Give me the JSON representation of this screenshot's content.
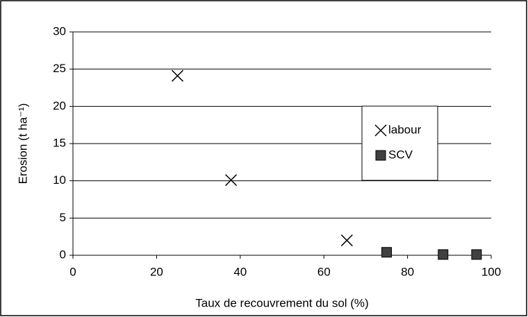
{
  "chart_data": {
    "type": "scatter",
    "x_label": "Taux de recouvrement du sol (%)",
    "y_label": "Erosion (t ha⁻¹)",
    "xlim": [
      0,
      100
    ],
    "xticks": [
      0,
      20,
      40,
      60,
      80,
      100
    ],
    "ylim": [
      0,
      30
    ],
    "yticks": [
      0,
      5,
      10,
      15,
      20,
      25,
      30
    ],
    "grid": true,
    "legend": "right",
    "series": [
      {
        "name": "labour",
        "color": "#000000",
        "marker": "x",
        "x": [
          25,
          37.8,
          65.5
        ],
        "values": [
          24.1,
          10.1,
          2.0
        ]
      },
      {
        "name": "SCV",
        "color": "#404040",
        "marker": "square",
        "x": [
          75,
          88.5,
          96.5
        ],
        "values": [
          0.4,
          0.1,
          0.1
        ]
      }
    ]
  }
}
